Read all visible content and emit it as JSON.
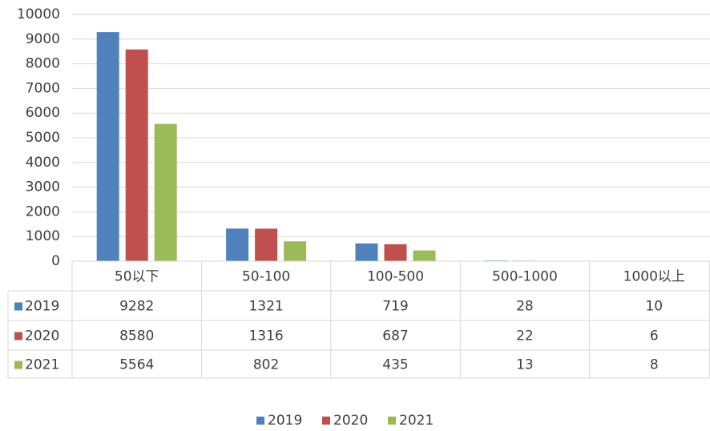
{
  "chart_data": {
    "type": "bar",
    "categories": [
      "50以下",
      "50-100",
      "100-500",
      "500-1000",
      "1000以上"
    ],
    "series": [
      {
        "name": "2019",
        "color": "#4f81bd",
        "values": [
          9282,
          1321,
          719,
          28,
          10
        ]
      },
      {
        "name": "2020",
        "color": "#c0504d",
        "values": [
          8580,
          1316,
          687,
          22,
          6
        ]
      },
      {
        "name": "2021",
        "color": "#9bbb59",
        "values": [
          5564,
          802,
          435,
          13,
          8
        ]
      }
    ],
    "ylim": [
      0,
      10000
    ],
    "yticks": [
      0,
      1000,
      2000,
      3000,
      4000,
      5000,
      6000,
      7000,
      8000,
      9000,
      10000
    ],
    "grid": true,
    "data_table": true,
    "legend": "bottom"
  }
}
